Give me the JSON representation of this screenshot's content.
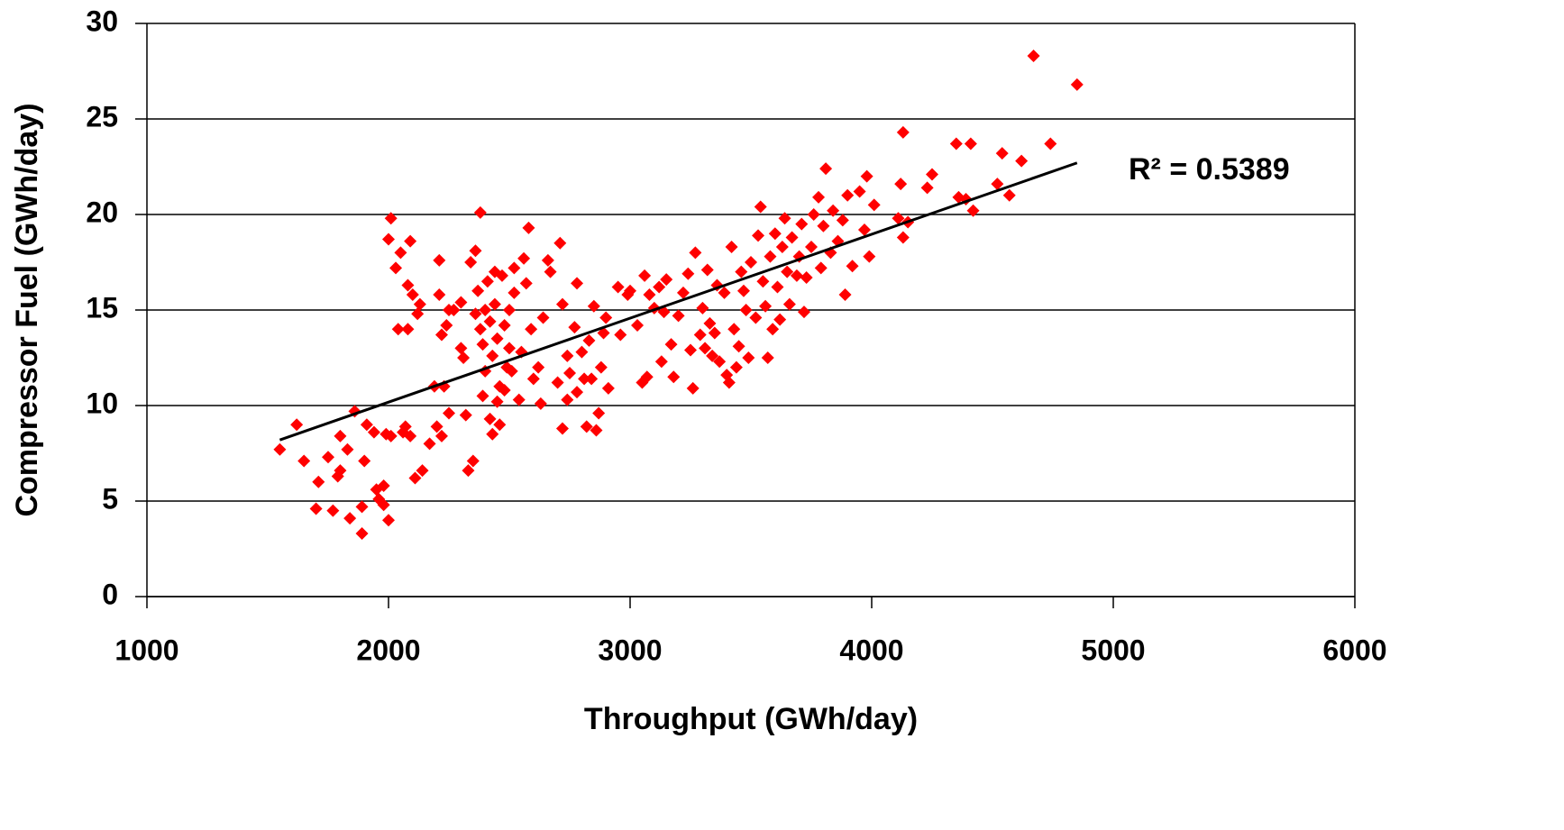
{
  "chart_data": {
    "type": "scatter",
    "x_label": "Throughput (GWh/day)",
    "y_label": "Compressor Fuel (GWh/day)",
    "annotation": "R² = 0.5389",
    "color": "#ff0000",
    "xlim": [
      1000,
      6000
    ],
    "xticks": [
      1000,
      2000,
      3000,
      4000,
      5000,
      6000
    ],
    "ylim": [
      0,
      30
    ],
    "yticks": [
      0,
      5,
      10,
      15,
      20,
      25,
      30
    ],
    "grid": true,
    "trendline": {
      "x": [
        1550,
        4850
      ],
      "values": [
        8.2,
        22.7
      ],
      "color": "#000000"
    },
    "x": [
      1550,
      1620,
      1650,
      1700,
      1710,
      1750,
      1770,
      1790,
      1800,
      1800,
      1830,
      1840,
      1860,
      1890,
      1890,
      1900,
      1910,
      1940,
      1950,
      1960,
      1980,
      1980,
      2000,
      1990,
      2010,
      2010,
      2000,
      2030,
      2040,
      2050,
      2060,
      2070,
      2080,
      2080,
      2090,
      2090,
      2100,
      2110,
      2120,
      2130,
      2140,
      2170,
      2190,
      2200,
      2210,
      2210,
      2220,
      2220,
      2230,
      2240,
      2250,
      2250,
      2270,
      2300,
      2300,
      2310,
      2320,
      2330,
      2340,
      2350,
      2360,
      2360,
      2370,
      2380,
      2380,
      2390,
      2390,
      2400,
      2400,
      2410,
      2420,
      2420,
      2430,
      2430,
      2440,
      2440,
      2450,
      2450,
      2460,
      2460,
      2470,
      2480,
      2480,
      2490,
      2500,
      2500,
      2510,
      2520,
      2520,
      2540,
      2550,
      2560,
      2570,
      2580,
      2590,
      2600,
      2620,
      2630,
      2640,
      2660,
      2670,
      2700,
      2710,
      2720,
      2720,
      2740,
      2740,
      2750,
      2770,
      2780,
      2780,
      2800,
      2810,
      2820,
      2830,
      2840,
      2850,
      2860,
      2870,
      2880,
      2890,
      2900,
      2910,
      2950,
      2960,
      2990,
      3000,
      3030,
      3050,
      3060,
      3070,
      3080,
      3100,
      3120,
      3130,
      3140,
      3150,
      3170,
      3180,
      3200,
      3220,
      3240,
      3250,
      3260,
      3270,
      3290,
      3300,
      3310,
      3320,
      3330,
      3340,
      3350,
      3360,
      3370,
      3390,
      3400,
      3410,
      3420,
      3430,
      3440,
      3450,
      3460,
      3470,
      3480,
      3490,
      3500,
      3520,
      3530,
      3540,
      3550,
      3560,
      3570,
      3580,
      3590,
      3600,
      3610,
      3620,
      3630,
      3640,
      3650,
      3660,
      3670,
      3690,
      3700,
      3710,
      3720,
      3730,
      3750,
      3760,
      3780,
      3790,
      3800,
      3810,
      3830,
      3840,
      3860,
      3880,
      3890,
      3900,
      3920,
      3950,
      3970,
      3980,
      3990,
      4010,
      4110,
      4120,
      4130,
      4130,
      4150,
      4230,
      4250,
      4350,
      4360,
      4390,
      4410,
      4420,
      4520,
      4540,
      4570,
      4620,
      4670,
      4740,
      4850
    ],
    "values": [
      7.7,
      9.0,
      7.1,
      4.6,
      6.0,
      7.3,
      4.5,
      6.3,
      6.6,
      8.4,
      7.7,
      4.1,
      9.7,
      3.3,
      4.7,
      7.1,
      9.0,
      8.6,
      5.6,
      5.1,
      5.8,
      4.8,
      4.0,
      8.5,
      8.4,
      19.8,
      18.7,
      17.2,
      14.0,
      18.0,
      8.6,
      8.9,
      16.3,
      14.0,
      18.6,
      8.4,
      15.8,
      6.2,
      14.8,
      15.3,
      6.6,
      8.0,
      11.0,
      8.9,
      17.6,
      15.8,
      13.7,
      8.4,
      11.0,
      14.2,
      9.6,
      15.0,
      15.0,
      15.4,
      13.0,
      12.5,
      9.5,
      6.6,
      17.5,
      7.1,
      14.8,
      18.1,
      16.0,
      20.1,
      14.0,
      13.2,
      10.5,
      15.0,
      11.8,
      16.5,
      14.4,
      9.3,
      8.5,
      12.6,
      17.0,
      15.3,
      10.2,
      13.5,
      11.0,
      9.0,
      16.8,
      14.2,
      10.8,
      12.0,
      15.0,
      13.0,
      11.8,
      17.2,
      15.9,
      10.3,
      12.8,
      17.7,
      16.4,
      19.3,
      14.0,
      11.4,
      12.0,
      10.1,
      14.6,
      17.6,
      17.0,
      11.2,
      18.5,
      8.8,
      15.3,
      12.6,
      10.3,
      11.7,
      14.1,
      16.4,
      10.7,
      12.8,
      11.4,
      8.9,
      13.4,
      11.4,
      15.2,
      8.7,
      9.6,
      12.0,
      13.8,
      14.6,
      10.9,
      16.2,
      13.7,
      15.8,
      16.0,
      14.2,
      11.2,
      16.8,
      11.5,
      15.8,
      15.1,
      16.2,
      12.3,
      14.9,
      16.6,
      13.2,
      11.5,
      14.7,
      15.9,
      16.9,
      12.9,
      10.9,
      18.0,
      13.7,
      15.1,
      13.0,
      17.1,
      14.3,
      12.6,
      13.8,
      16.3,
      12.3,
      15.9,
      11.6,
      11.2,
      18.3,
      14.0,
      12.0,
      13.1,
      17.0,
      16.0,
      15.0,
      12.5,
      17.5,
      14.6,
      18.9,
      20.4,
      16.5,
      15.2,
      12.5,
      17.8,
      14.0,
      19.0,
      16.2,
      14.5,
      18.3,
      19.8,
      17.0,
      15.3,
      18.8,
      16.8,
      17.8,
      19.5,
      14.9,
      16.7,
      18.3,
      20.0,
      20.9,
      17.2,
      19.4,
      22.4,
      18.0,
      20.2,
      18.6,
      19.7,
      15.8,
      21.0,
      17.3,
      21.2,
      19.2,
      22.0,
      17.8,
      20.5,
      19.8,
      21.6,
      18.8,
      24.3,
      19.6,
      21.4,
      22.1,
      23.7,
      20.9,
      20.8,
      23.7,
      20.2,
      21.6,
      23.2,
      21.0,
      22.8,
      28.3,
      23.7,
      26.8
    ]
  }
}
